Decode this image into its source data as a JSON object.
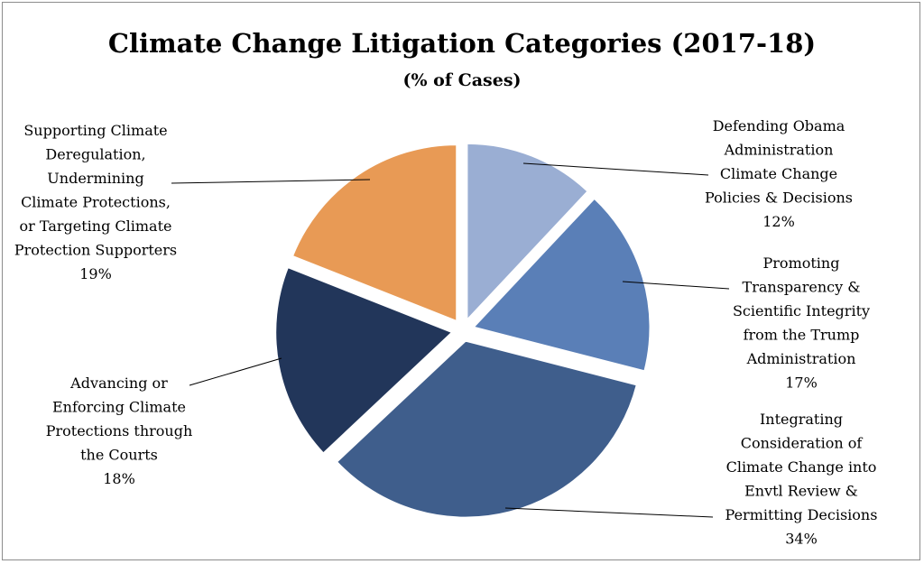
{
  "chart_data": {
    "type": "pie",
    "title": "Climate Change Litigation Categories (2017-18)",
    "subtitle": "(% of Cases)",
    "slices": [
      {
        "label_lines": [
          "Defending Obama",
          "Administration",
          "Climate Change",
          "Policies & Decisions"
        ],
        "value": 12,
        "value_label": "12%",
        "color": "#9aaed3"
      },
      {
        "label_lines": [
          "Promoting",
          "Transparency &",
          "Scientific Integrity",
          "from the Trump",
          "Administration"
        ],
        "value": 17,
        "value_label": "17%",
        "color": "#5a7fb7"
      },
      {
        "label_lines": [
          "Integrating",
          "Consideration of",
          "Climate Change into",
          "Envtl Review &",
          "Permitting Decisions"
        ],
        "value": 34,
        "value_label": "34%",
        "color": "#3f5e8c"
      },
      {
        "label_lines": [
          "Advancing or",
          "Enforcing Climate",
          "Protections through",
          "the Courts"
        ],
        "value": 18,
        "value_label": "18%",
        "color": "#22365a"
      },
      {
        "label_lines": [
          "Supporting Climate",
          "Deregulation,",
          "Undermining",
          "Climate Protections,",
          "or Targeting Climate",
          "Protection Supporters"
        ],
        "value": 19,
        "value_label": "19%",
        "color": "#e89a55"
      }
    ]
  }
}
